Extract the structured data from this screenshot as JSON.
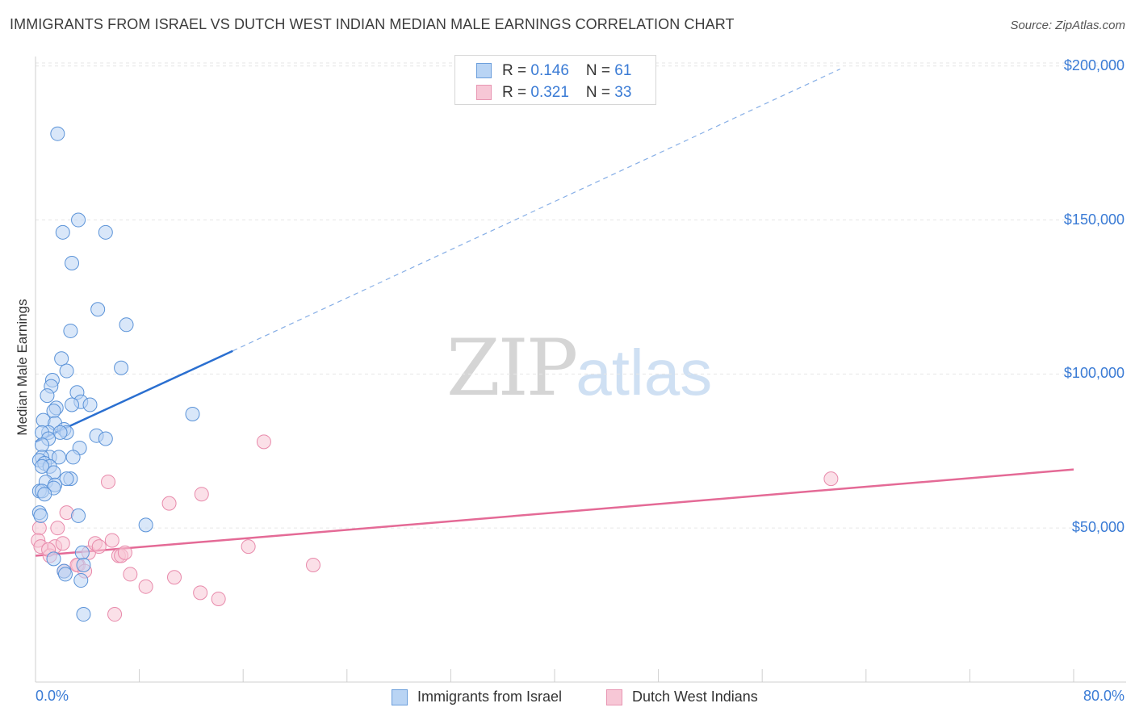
{
  "title": "IMMIGRANTS FROM ISRAEL VS DUTCH WEST INDIAN MEDIAN MALE EARNINGS CORRELATION CHART",
  "source": "Source: ZipAtlas.com",
  "watermark": {
    "zip": "ZIP",
    "atlas": "atlas"
  },
  "colors": {
    "blue": "#3a7bd5",
    "blue_fill": "#b9d4f4",
    "blue_line": "#2a6fd0",
    "pink": "#e8799f",
    "pink_fill": "#f7c7d6",
    "pink_line": "#e46a96"
  },
  "legend": {
    "rows": [
      {
        "r_label": "R = ",
        "r_value": "0.146",
        "n_label": "N = ",
        "n_value": "61"
      },
      {
        "r_label": "R = ",
        "r_value": "0.321",
        "n_label": "N = ",
        "n_value": "33"
      }
    ]
  },
  "chart_data": {
    "type": "scatter",
    "title": "IMMIGRANTS FROM ISRAEL VS DUTCH WEST INDIAN MEDIAN MALE EARNINGS CORRELATION CHART",
    "xlabel": "",
    "ylabel": "Median Male Earnings",
    "xlim": [
      0,
      80
    ],
    "ylim": [
      0,
      210000
    ],
    "x_tick_labels": [
      "0.0%",
      "80.0%"
    ],
    "y_ticks": [
      {
        "value": 50000,
        "label": "$50,000"
      },
      {
        "value": 100000,
        "label": "$100,000"
      },
      {
        "value": 150000,
        "label": "$150,000"
      },
      {
        "value": 200000,
        "label": "$200,000"
      }
    ],
    "legend_position": "bottom-center",
    "series": [
      {
        "name": "Immigrants from Israel",
        "R": 0.146,
        "N": 61,
        "trend": {
          "x0": 0,
          "y0": 78000,
          "x_solid_end": 15.2,
          "y_solid_end": 107500,
          "x_dash_end": 62,
          "y_dash_end": 199000
        },
        "points": [
          [
            1.7,
            178000
          ],
          [
            3.3,
            150000
          ],
          [
            2.1,
            146000
          ],
          [
            5.4,
            146000
          ],
          [
            2.8,
            136000
          ],
          [
            4.8,
            121000
          ],
          [
            7.0,
            116000
          ],
          [
            2.7,
            114000
          ],
          [
            2.0,
            105000
          ],
          [
            6.6,
            102000
          ],
          [
            2.4,
            101000
          ],
          [
            1.3,
            98000
          ],
          [
            1.2,
            96000
          ],
          [
            0.9,
            93000
          ],
          [
            3.2,
            94000
          ],
          [
            3.5,
            91000
          ],
          [
            2.8,
            90000
          ],
          [
            1.6,
            89000
          ],
          [
            1.4,
            88000
          ],
          [
            4.2,
            90000
          ],
          [
            12.1,
            87000
          ],
          [
            0.6,
            85000
          ],
          [
            1.5,
            84000
          ],
          [
            2.2,
            82000
          ],
          [
            1.0,
            81000
          ],
          [
            0.5,
            81000
          ],
          [
            2.4,
            81000
          ],
          [
            1.9,
            81000
          ],
          [
            4.7,
            80000
          ],
          [
            5.4,
            79000
          ],
          [
            1.0,
            79000
          ],
          [
            0.5,
            77000
          ],
          [
            3.4,
            76000
          ],
          [
            1.1,
            73000
          ],
          [
            0.5,
            73000
          ],
          [
            0.3,
            72000
          ],
          [
            1.8,
            73000
          ],
          [
            2.9,
            73000
          ],
          [
            0.7,
            71000
          ],
          [
            1.1,
            70000
          ],
          [
            0.5,
            70000
          ],
          [
            1.4,
            68000
          ],
          [
            2.7,
            66000
          ],
          [
            2.4,
            66000
          ],
          [
            0.8,
            65000
          ],
          [
            1.5,
            64000
          ],
          [
            1.4,
            63000
          ],
          [
            0.3,
            62000
          ],
          [
            0.5,
            62000
          ],
          [
            0.7,
            61000
          ],
          [
            0.3,
            55000
          ],
          [
            0.4,
            54000
          ],
          [
            3.3,
            54000
          ],
          [
            8.5,
            51000
          ],
          [
            3.6,
            42000
          ],
          [
            1.4,
            40000
          ],
          [
            3.7,
            38000
          ],
          [
            2.2,
            36000
          ],
          [
            2.3,
            35000
          ],
          [
            3.5,
            33000
          ],
          [
            3.7,
            22000
          ]
        ]
      },
      {
        "name": "Dutch West Indians",
        "R": 0.321,
        "N": 33,
        "trend": {
          "x0": 0,
          "y0": 41000,
          "x1": 80,
          "y1": 69000
        },
        "points": [
          [
            0.3,
            50000
          ],
          [
            0.2,
            46000
          ],
          [
            2.4,
            55000
          ],
          [
            1.7,
            50000
          ],
          [
            0.4,
            44000
          ],
          [
            1.5,
            44000
          ],
          [
            2.1,
            45000
          ],
          [
            1.1,
            41000
          ],
          [
            1.0,
            43000
          ],
          [
            3.3,
            38000
          ],
          [
            4.1,
            42000
          ],
          [
            4.6,
            45000
          ],
          [
            4.9,
            44000
          ],
          [
            5.6,
            65000
          ],
          [
            5.9,
            46000
          ],
          [
            6.4,
            41000
          ],
          [
            6.6,
            41000
          ],
          [
            6.9,
            42000
          ],
          [
            7.3,
            35000
          ],
          [
            8.5,
            31000
          ],
          [
            10.3,
            58000
          ],
          [
            10.7,
            34000
          ],
          [
            12.8,
            61000
          ],
          [
            12.7,
            29000
          ],
          [
            14.1,
            27000
          ],
          [
            16.4,
            44000
          ],
          [
            17.6,
            78000
          ],
          [
            21.4,
            38000
          ],
          [
            2.2,
            36000
          ],
          [
            3.2,
            38000
          ],
          [
            3.8,
            36000
          ],
          [
            6.1,
            22000
          ],
          [
            61.3,
            66000
          ]
        ]
      }
    ]
  }
}
